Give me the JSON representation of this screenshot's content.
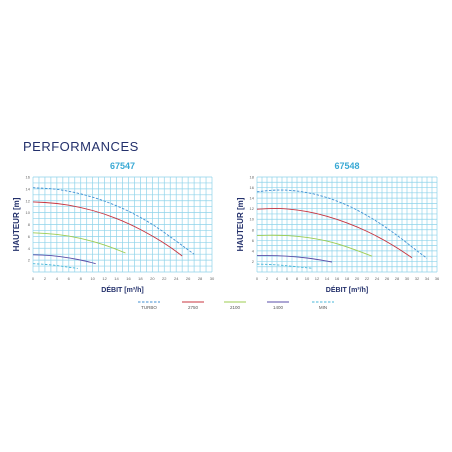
{
  "page": {
    "heading": "PERFORMANCES"
  },
  "colors": {
    "grid": "#8fd3ea",
    "title": "#3aa9d4",
    "axis_label": "#23306b",
    "tick": "#666666"
  },
  "chart_data": [
    {
      "type": "line",
      "title": "67547",
      "xlabel": "DÉBIT [m³/h]",
      "ylabel": "HAUTEUR [m]",
      "xlim": [
        0,
        30
      ],
      "ylim": [
        0,
        16
      ],
      "x_ticks": [
        "0",
        "2",
        "4",
        "6",
        "8",
        "10",
        "12",
        "14",
        "16",
        "18",
        "20",
        "22",
        "24",
        "26",
        "28",
        "30"
      ],
      "y_ticks": [
        "2",
        "4",
        "6",
        "8",
        "10",
        "12",
        "14",
        "16"
      ],
      "grid": true,
      "series": [
        {
          "name": "TURBO",
          "color": "#3f8fd2",
          "dash": true,
          "x": [
            0,
            4,
            8,
            12,
            16,
            20,
            24,
            27
          ],
          "y": [
            14.2,
            14.0,
            13.2,
            12.0,
            10.3,
            8.1,
            5.2,
            3.0
          ]
        },
        {
          "name": "2750",
          "color": "#c8343f",
          "dash": false,
          "x": [
            0,
            4,
            8,
            12,
            16,
            20,
            23,
            25
          ],
          "y": [
            11.8,
            11.6,
            10.9,
            9.8,
            8.2,
            6.1,
            4.2,
            2.7
          ]
        },
        {
          "name": "2100",
          "color": "#9ccc52",
          "dash": false,
          "x": [
            0,
            4,
            8,
            12,
            15.5
          ],
          "y": [
            6.6,
            6.4,
            5.7,
            4.6,
            3.2
          ]
        },
        {
          "name": "1400",
          "color": "#5a4ea8",
          "dash": false,
          "x": [
            0,
            3,
            6,
            9,
            10.5
          ],
          "y": [
            2.9,
            2.8,
            2.4,
            1.8,
            1.4
          ]
        },
        {
          "name": "MIN",
          "color": "#49b7d9",
          "dash": true,
          "x": [
            0,
            2,
            4,
            6,
            7.5
          ],
          "y": [
            1.4,
            1.3,
            1.1,
            0.8,
            0.6
          ]
        }
      ]
    },
    {
      "type": "line",
      "title": "67548",
      "xlabel": "DÉBIT [m³/h]",
      "ylabel": "HAUTEUR [m]",
      "xlim": [
        0,
        36
      ],
      "ylim": [
        0,
        18
      ],
      "x_ticks": [
        "0",
        "2",
        "4",
        "6",
        "8",
        "10",
        "12",
        "14",
        "16",
        "18",
        "20",
        "22",
        "24",
        "26",
        "28",
        "30",
        "32",
        "34",
        "36"
      ],
      "y_ticks": [
        "2",
        "4",
        "6",
        "8",
        "10",
        "12",
        "14",
        "16",
        "18"
      ],
      "grid": true,
      "series": [
        {
          "name": "TURBO",
          "color": "#3f8fd2",
          "dash": true,
          "x": [
            0,
            4,
            8,
            12,
            16,
            20,
            24,
            28,
            32,
            34
          ],
          "y": [
            15.2,
            15.6,
            15.4,
            14.7,
            13.5,
            11.8,
            9.6,
            7.0,
            4.0,
            2.6
          ]
        },
        {
          "name": "2750",
          "color": "#c8343f",
          "dash": false,
          "x": [
            0,
            4,
            8,
            12,
            16,
            20,
            24,
            28,
            31
          ],
          "y": [
            11.9,
            12.1,
            11.8,
            11.1,
            10.0,
            8.6,
            6.8,
            4.6,
            2.7
          ]
        },
        {
          "name": "2100",
          "color": "#9ccc52",
          "dash": false,
          "x": [
            0,
            4,
            8,
            12,
            16,
            20,
            23
          ],
          "y": [
            6.9,
            7.0,
            6.8,
            6.3,
            5.4,
            4.1,
            3.0
          ]
        },
        {
          "name": "1400",
          "color": "#5a4ea8",
          "dash": false,
          "x": [
            0,
            4,
            8,
            12,
            15
          ],
          "y": [
            3.1,
            3.1,
            2.9,
            2.4,
            1.9
          ]
        },
        {
          "name": "MIN",
          "color": "#49b7d9",
          "dash": true,
          "x": [
            0,
            3,
            6,
            9,
            11
          ],
          "y": [
            1.5,
            1.4,
            1.2,
            0.9,
            0.7
          ]
        }
      ]
    }
  ],
  "legend": [
    {
      "name": "TURBO",
      "color": "#3f8fd2",
      "dash": true
    },
    {
      "name": "2750",
      "color": "#c8343f",
      "dash": false
    },
    {
      "name": "2100",
      "color": "#9ccc52",
      "dash": false
    },
    {
      "name": "1400",
      "color": "#5a4ea8",
      "dash": false
    },
    {
      "name": "MIN",
      "color": "#49b7d9",
      "dash": true
    }
  ]
}
